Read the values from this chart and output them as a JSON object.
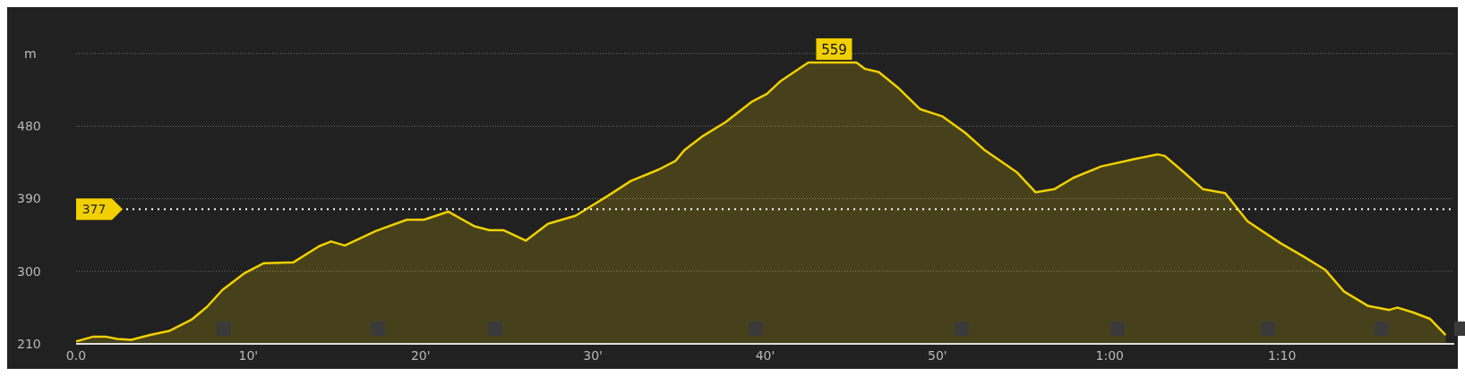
{
  "chart_data": {
    "type": "area",
    "ylabel": "m",
    "x": [
      0,
      1,
      1.7,
      2.4,
      3.2,
      4.3,
      5.4,
      6.7,
      7.6,
      8.5,
      9.8,
      10.9,
      12.6,
      14.1,
      14.8,
      15.6,
      17.4,
      19.2,
      20.2,
      21.6,
      23.1,
      24,
      24.8,
      26.1,
      27.4,
      29,
      30.9,
      32.2,
      33.8,
      34.8,
      35.3,
      36.4,
      37.7,
      39.2,
      40.1,
      40.9,
      42.5,
      44,
      45.3,
      45.8,
      46.6,
      47.7,
      49,
      50.3,
      51.6,
      52.7,
      54.6,
      55.7,
      56.8,
      57.9,
      59.5,
      61.4,
      62.8,
      63.2,
      64.3,
      65.4,
      66.7,
      68,
      69.9,
      71.2,
      72.5,
      73.6,
      75,
      76.2,
      76.7,
      77.6,
      78.6,
      79.5
    ],
    "series": [
      {
        "color": "#f2d000",
        "values": [
          213,
          219,
          219,
          216,
          215,
          221,
          226,
          240,
          256,
          277,
          298,
          310,
          311,
          331,
          337,
          332,
          350,
          364,
          364,
          374,
          356,
          351,
          351,
          338,
          359,
          369,
          394,
          412,
          426,
          437,
          450,
          468,
          485,
          510,
          520,
          536,
          559,
          559,
          559,
          551,
          547,
          528,
          501,
          492,
          472,
          451,
          423,
          398,
          402,
          416,
          430,
          439,
          445,
          443,
          423,
          402,
          397,
          362,
          335,
          319,
          302,
          275,
          257,
          252,
          255,
          249,
          241,
          221
        ]
      }
    ],
    "xlim": [
      0,
      80
    ],
    "xticks": [
      {
        "value": 0,
        "label": "0.0"
      },
      {
        "value": 10,
        "label": "10'"
      },
      {
        "value": 20,
        "label": "20'"
      },
      {
        "value": 30,
        "label": "30'"
      },
      {
        "value": 40,
        "label": "40'"
      },
      {
        "value": 50,
        "label": "50'"
      },
      {
        "value": 60,
        "label": "1:00"
      },
      {
        "value": 70,
        "label": "1:10"
      }
    ],
    "ylim": [
      210,
      570
    ],
    "yticks": [
      210,
      300,
      390,
      480,
      {
        "value": 570,
        "label": null
      }
    ],
    "grid": "y",
    "ref_lines": [
      {
        "axis": "y",
        "value": 377,
        "label": "377",
        "color": "#ffffff",
        "line_style": "dotted"
      }
    ],
    "annotations": [
      {
        "text": "559",
        "x": 44,
        "y": 559
      }
    ]
  }
}
